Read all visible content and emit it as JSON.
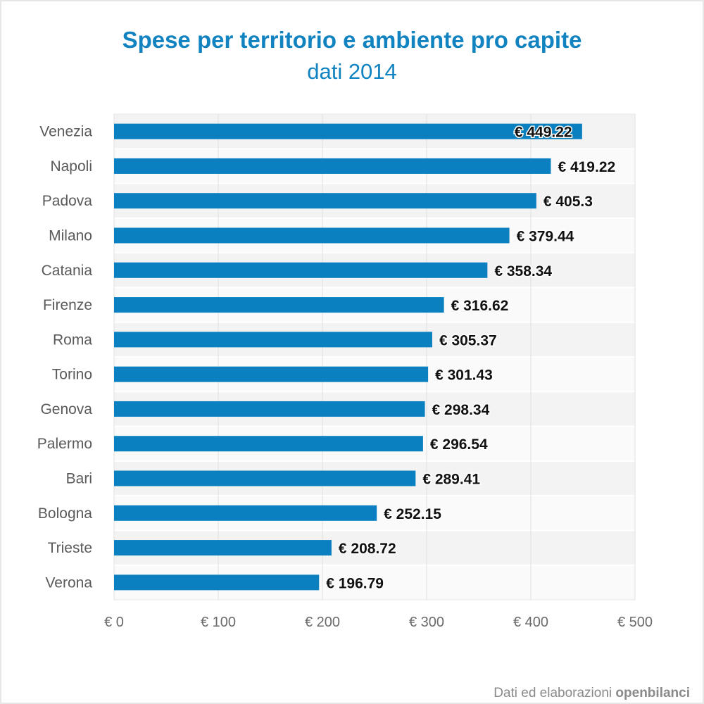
{
  "title": "Spese per territorio e ambiente pro capite",
  "subtitle": "dati 2014",
  "credit": {
    "prefix": "Dati ed elaborazioni",
    "brand": "openbilanci"
  },
  "colors": {
    "bar": "#0a80c0",
    "title": "#1183c0",
    "label": "#5a5a5a",
    "value": "#111111",
    "grid": "#e0e0e0",
    "band_a": "#f3f3f3",
    "band_b": "#fafafa"
  },
  "chart_data": {
    "type": "bar",
    "orientation": "horizontal",
    "title": "Spese per territorio e ambiente pro capite",
    "subtitle": "dati 2014",
    "categories": [
      "Venezia",
      "Napoli",
      "Padova",
      "Milano",
      "Catania",
      "Firenze",
      "Roma",
      "Torino",
      "Genova",
      "Palermo",
      "Bari",
      "Bologna",
      "Trieste",
      "Verona"
    ],
    "values": [
      449.22,
      419.22,
      405.3,
      379.44,
      358.34,
      316.62,
      305.37,
      301.43,
      298.34,
      296.54,
      289.41,
      252.15,
      208.72,
      196.79
    ],
    "value_labels": [
      "€ 449.22",
      "€ 419.22",
      "€ 405.3",
      "€ 379.44",
      "€ 358.34",
      "€ 316.62",
      "€ 305.37",
      "€ 301.43",
      "€ 298.34",
      "€ 296.54",
      "€ 289.41",
      "€ 252.15",
      "€ 208.72",
      "€ 196.79"
    ],
    "xlim": [
      0,
      500
    ],
    "x_ticks": [
      0,
      100,
      200,
      300,
      400,
      500
    ],
    "x_tick_labels": [
      "€ 0",
      "€ 100",
      "€ 200",
      "€ 300",
      "€ 400",
      "€ 500"
    ],
    "grid": true,
    "legend": "none"
  }
}
